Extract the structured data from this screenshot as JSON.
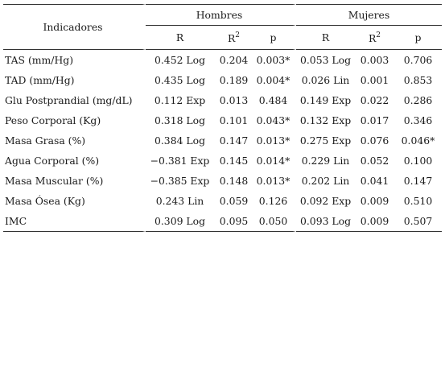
{
  "table": {
    "indicator_header": "Indicadores",
    "groups": [
      "Hombres",
      "Mujeres"
    ],
    "subheaders": [
      "R",
      "R",
      "p",
      "R",
      "R",
      "p"
    ],
    "superscript_2": "2",
    "rows": [
      {
        "name": "TAS (mm/Hg)",
        "h_r": "0.452 Log",
        "h_r2": "0.204",
        "h_p": "0.003*",
        "m_r": "0.053 Log",
        "m_r2": "0.003",
        "m_p": "0.706"
      },
      {
        "name": "TAD (mm/Hg)",
        "h_r": "0.435 Log",
        "h_r2": "0.189",
        "h_p": "0.004*",
        "m_r": "0.026 Lin",
        "m_r2": "0.001",
        "m_p": "0.853"
      },
      {
        "name": "Glu Postprandial (mg/dL)",
        "h_r": "0.112 Exp",
        "h_r2": "0.013",
        "h_p": "0.484",
        "m_r": "0.149 Exp",
        "m_r2": "0.022",
        "m_p": "0.286"
      },
      {
        "name": "Peso Corporal (Kg)",
        "h_r": "0.318 Log",
        "h_r2": "0.101",
        "h_p": "0.043*",
        "m_r": "0.132 Exp",
        "m_r2": "0.017",
        "m_p": "0.346"
      },
      {
        "name": "Masa Grasa (%)",
        "h_r": "0.384 Log",
        "h_r2": "0.147",
        "h_p": "0.013*",
        "m_r": "0.275 Exp",
        "m_r2": "0.076",
        "m_p": "0.046*"
      },
      {
        "name": "Agua Corporal (%)",
        "h_r": "−0.381 Exp",
        "h_r2": "0.145",
        "h_p": "0.014*",
        "m_r": "0.229 Lin",
        "m_r2": "0.052",
        "m_p": "0.100"
      },
      {
        "name": "Masa Muscular (%)",
        "h_r": "−0.385 Exp",
        "h_r2": "0.148",
        "h_p": "0.013*",
        "m_r": "0.202 Lin",
        "m_r2": "0.041",
        "m_p": "0.147"
      },
      {
        "name": "Masa Ósea (Kg)",
        "h_r": "0.243 Lin",
        "h_r2": "0.059",
        "h_p": "0.126",
        "m_r": "0.092 Exp",
        "m_r2": "0.009",
        "m_p": "0.510"
      },
      {
        "name": "IMC",
        "h_r": "0.309 Log",
        "h_r2": "0.095",
        "h_p": "0.050",
        "m_r": "0.093 Log",
        "m_r2": "0.009",
        "m_p": "0.507"
      }
    ]
  }
}
